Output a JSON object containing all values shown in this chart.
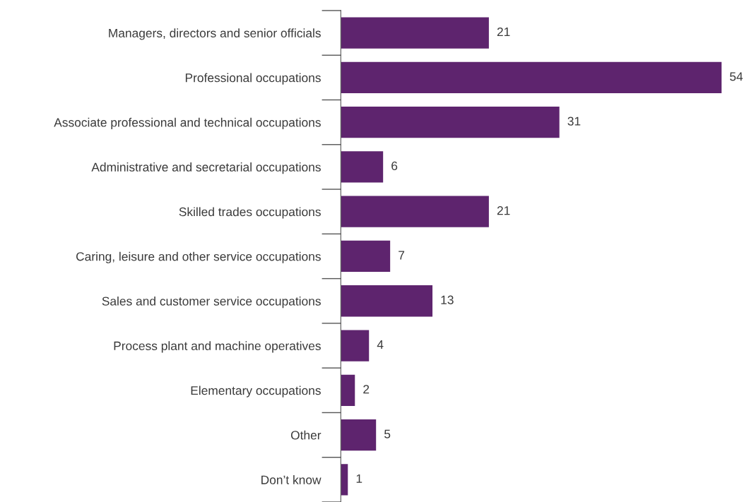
{
  "chart_data": {
    "type": "bar",
    "orientation": "horizontal",
    "categories": [
      "Managers, directors and senior officials",
      "Professional occupations",
      "Associate professional and technical occupations",
      "Administrative and secretarial occupations",
      "Skilled trades occupations",
      "Caring, leisure and other service occupations",
      "Sales and customer service occupations",
      "Process plant and machine operatives",
      "Elementary occupations",
      "Other",
      "Don’t know"
    ],
    "values": [
      21,
      54,
      31,
      6,
      21,
      7,
      13,
      4,
      2,
      5,
      1
    ],
    "color": "#5e246e",
    "data_labels": true
  }
}
